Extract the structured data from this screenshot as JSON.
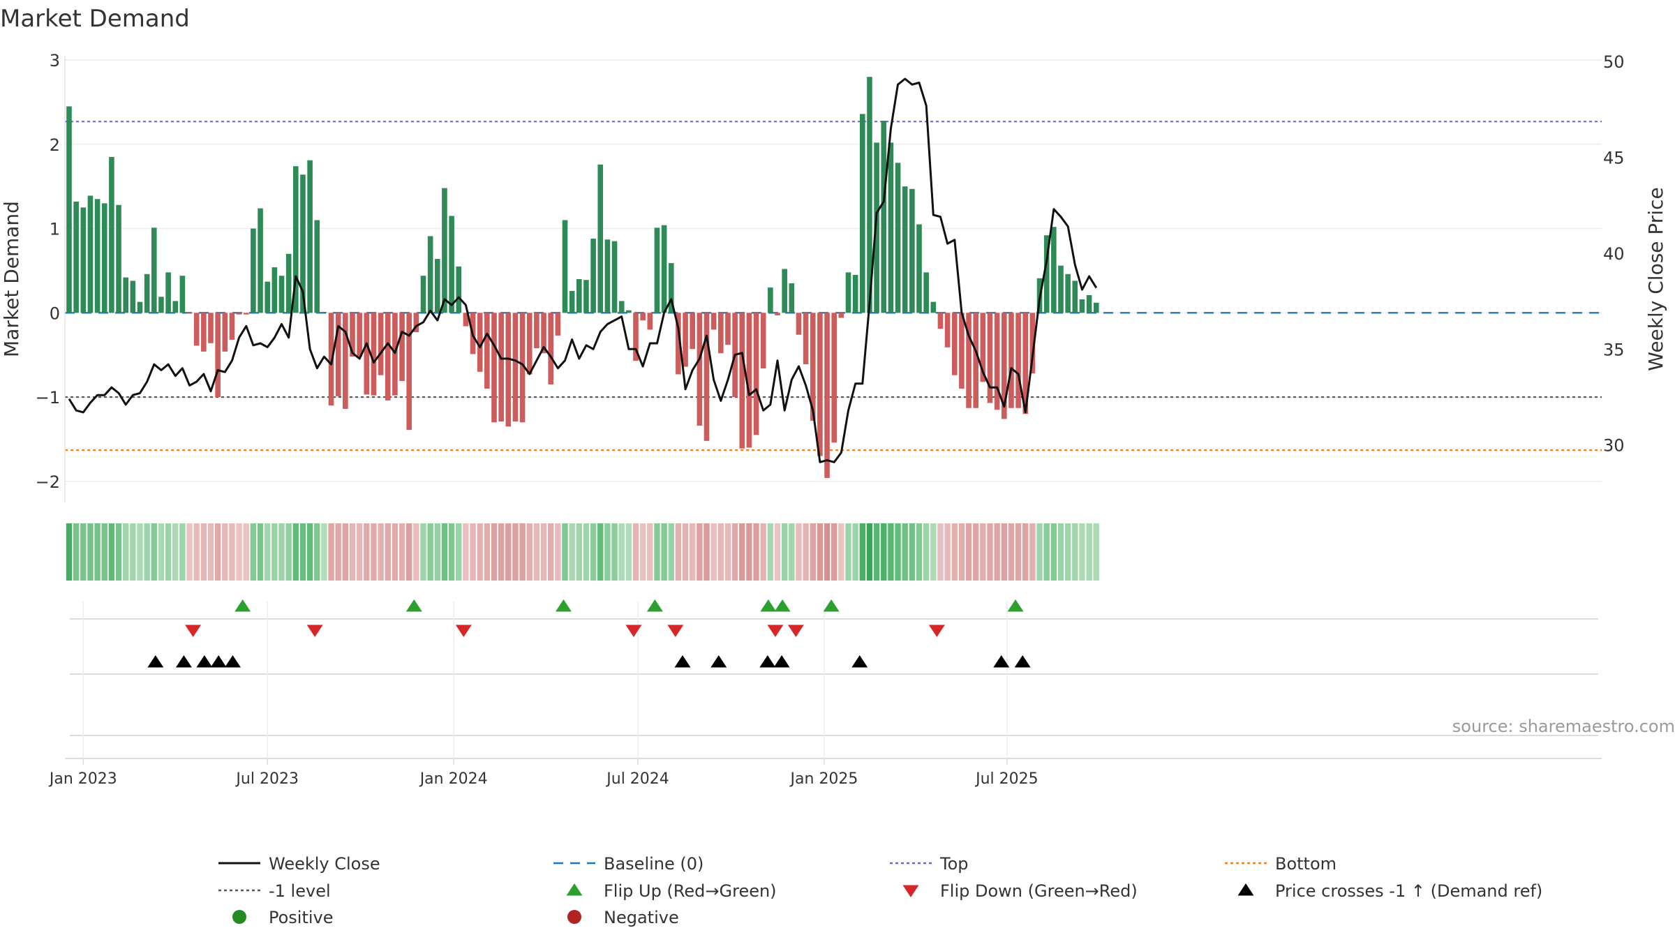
{
  "colors": {
    "positive": "#2e8b57",
    "negative": "#cd5c5c",
    "close_line": "#111111",
    "baseline": "#1f77b4",
    "top_line": "#6a6ad0",
    "bottom_line": "#ff7f0e",
    "minus1_line": "#555555",
    "flip_up": "#2ca02c",
    "flip_down": "#d62728",
    "cross": "#000000",
    "legend_positive": "#228b22",
    "legend_negative": "#b22222"
  },
  "chart_data": {
    "type": "bar",
    "title": "Market Demand",
    "ylabel": "Market Demand",
    "y2label": "Weekly Close Price",
    "ylim": [
      -2.25,
      3.05
    ],
    "y2lim": [
      27,
      50.3
    ],
    "yticks": [
      "−2",
      "−1",
      "0",
      "1",
      "2",
      "3"
    ],
    "y2ticks": [
      "30",
      "35",
      "40",
      "45",
      "50"
    ],
    "x_start_week": -2,
    "x_ticks": [
      {
        "label": "Jan 2023",
        "week": 0
      },
      {
        "label": "Jul 2023",
        "week": 26
      },
      {
        "label": "Jan 2024",
        "week": 52.3
      },
      {
        "label": "Jul 2024",
        "week": 78.3
      },
      {
        "label": "Jan 2025",
        "week": 104.6
      },
      {
        "label": "Jul 2025",
        "week": 130.4
      }
    ],
    "reference_lines": {
      "top": 2.27,
      "bottom": -1.63,
      "minus_one": -1,
      "baseline": 0
    },
    "demand": [
      2.45,
      1.32,
      1.25,
      1.39,
      1.35,
      1.3,
      1.85,
      1.28,
      0.42,
      0.38,
      0.13,
      0.46,
      1.01,
      0.19,
      0.48,
      0.14,
      0.44,
      -0.01,
      -0.39,
      -0.46,
      -0.36,
      -1.0,
      -0.46,
      -0.32,
      -0.02,
      -0.02,
      1.0,
      1.24,
      0.37,
      0.54,
      0.44,
      0.7,
      1.74,
      1.64,
      1.81,
      1.1,
      0.01,
      -1.1,
      -0.99,
      -1.14,
      -0.52,
      -0.52,
      -0.97,
      -0.98,
      -0.74,
      -1.04,
      -0.98,
      -0.81,
      -1.39,
      -0.23,
      0.44,
      0.91,
      0.64,
      1.48,
      1.15,
      0.55,
      -0.16,
      -0.49,
      -0.7,
      -0.9,
      -1.3,
      -1.29,
      -1.35,
      -1.29,
      -1.3,
      -0.73,
      -0.42,
      -0.48,
      -0.85,
      -0.27,
      1.1,
      0.26,
      0.4,
      0.39,
      0.88,
      1.76,
      0.87,
      0.85,
      0.14,
      0.03,
      -0.57,
      -0.09,
      -0.2,
      1.01,
      1.04,
      0.59,
      -0.73,
      -0.64,
      -0.43,
      -1.34,
      -1.52,
      -0.2,
      -0.48,
      -0.38,
      -1.0,
      -1.61,
      -1.6,
      -1.45,
      -0.66,
      0.3,
      -0.03,
      0.52,
      0.35,
      -0.26,
      -0.61,
      -1.28,
      -1.7,
      -1.96,
      -1.54,
      -0.06,
      0.48,
      0.45,
      2.36,
      2.8,
      2.02,
      2.28,
      2.02,
      1.78,
      1.5,
      1.47,
      1.05,
      0.48,
      0.13,
      -0.19,
      -0.41,
      -0.74,
      -0.9,
      -1.13,
      -1.13,
      -0.82,
      -1.07,
      -1.15,
      -1.26,
      -1.13,
      -1.13,
      -1.2,
      -0.72,
      0.41,
      0.92,
      1.02,
      0.56,
      0.46,
      0.38,
      0.16,
      0.21,
      0.12
    ],
    "weekly_close": [
      32.4,
      31.8,
      31.7,
      32.2,
      32.6,
      32.6,
      33.0,
      32.7,
      32.1,
      32.6,
      32.7,
      33.3,
      34.2,
      33.9,
      34.2,
      33.6,
      34.0,
      33.1,
      33.3,
      33.7,
      32.8,
      33.9,
      33.8,
      34.4,
      35.6,
      36.2,
      35.2,
      35.3,
      35.1,
      35.6,
      36.3,
      35.6,
      38.8,
      38.0,
      35.0,
      34.0,
      34.6,
      34.2,
      36.2,
      35.9,
      34.8,
      34.5,
      35.3,
      34.3,
      34.8,
      35.3,
      34.8,
      35.9,
      35.7,
      36.2,
      36.4,
      37.0,
      36.5,
      37.6,
      37.3,
      37.7,
      37.3,
      35.7,
      35.1,
      35.8,
      35.2,
      34.5,
      34.5,
      34.4,
      34.2,
      33.7,
      34.4,
      35.1,
      34.6,
      34.0,
      34.4,
      35.5,
      34.5,
      35.2,
      35.0,
      35.9,
      36.3,
      36.5,
      36.7,
      35.0,
      35.0,
      34.1,
      35.3,
      35.3,
      36.9,
      37.6,
      36.1,
      32.9,
      33.9,
      34.5,
      35.7,
      33.4,
      32.3,
      33.4,
      34.7,
      34.8,
      32.6,
      32.9,
      31.8,
      32.1,
      34.4,
      31.8,
      33.4,
      34.1,
      33.1,
      31.8,
      29.1,
      29.2,
      29.1,
      29.6,
      31.8,
      33.2,
      33.2,
      37.4,
      42.1,
      42.7,
      46.5,
      48.8,
      49.1,
      48.8,
      48.9,
      47.7,
      42.0,
      41.9,
      40.5,
      40.7,
      36.9,
      35.7,
      34.9,
      33.8,
      33.0,
      33.0,
      32.0,
      34.0,
      33.7,
      31.7,
      34.6,
      37.6,
      39.6,
      42.3,
      41.9,
      41.4,
      39.4,
      38.1,
      38.8,
      38.2
    ],
    "flip_up_weeks": [
      22.5,
      46.7,
      67.8,
      80.7,
      96.7,
      98.7,
      105.6,
      131.6
    ],
    "flip_down_weeks": [
      15.5,
      32.7,
      53.7,
      77.7,
      83.6,
      97.7,
      100.6,
      120.5
    ],
    "price_cross_weeks": [
      10.2,
      14.2,
      17.1,
      19.1,
      21.1,
      84.6,
      89.7,
      96.6,
      98.6,
      109.6,
      129.6,
      132.6
    ],
    "legend": [
      {
        "label": "Weekly Close",
        "kind": "line-solid",
        "color_key": "close_line"
      },
      {
        "label": "Baseline (0)",
        "kind": "line-dash",
        "color_key": "baseline"
      },
      {
        "label": "Top",
        "kind": "line-dot",
        "color_key": "top_line"
      },
      {
        "label": "Bottom",
        "kind": "line-dot",
        "color_key": "bottom_line"
      },
      {
        "label": "-1 level",
        "kind": "line-dot",
        "color_key": "minus1_line"
      },
      {
        "label": "Flip Up (Red→Green)",
        "kind": "tri-up",
        "color_key": "flip_up"
      },
      {
        "label": "Flip Down (Green→Red)",
        "kind": "tri-down",
        "color_key": "flip_down"
      },
      {
        "label": "Price crosses -1 ↑ (Demand ref)",
        "kind": "tri-up",
        "color_key": "cross"
      },
      {
        "label": "Positive",
        "kind": "dot",
        "color_key": "legend_positive"
      },
      {
        "label": "Negative",
        "kind": "dot",
        "color_key": "legend_negative"
      }
    ],
    "source": "source: sharemaestro.com"
  }
}
